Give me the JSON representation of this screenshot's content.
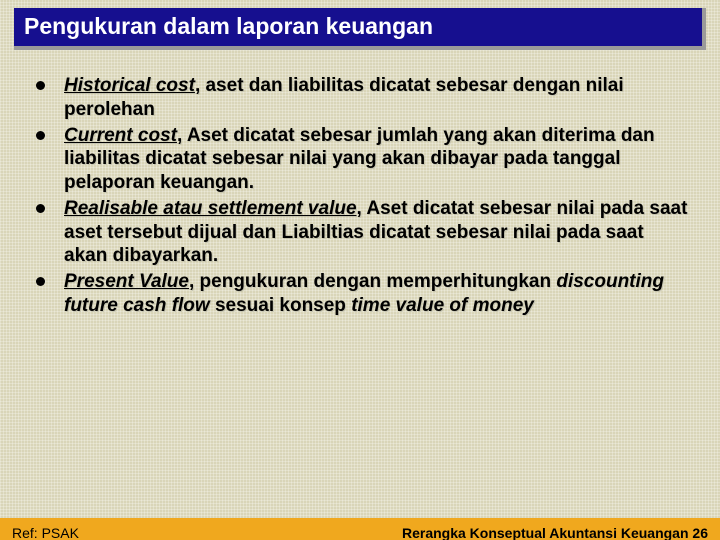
{
  "slide": {
    "title": "Pengukuran dalam laporan keuangan",
    "title_bg": "#160f8f",
    "title_color": "#ffffff",
    "title_fontsize": 23,
    "shadow_color": "#9a9a9a",
    "background_color": "#d9d5b8",
    "body_fontsize": 19,
    "body_color": "#000000",
    "bullets": [
      {
        "term": "Historical cost",
        "rest": ", aset dan liabilitas dicatat sebesar dengan nilai perolehan"
      },
      {
        "term": "Current cost",
        "rest": ", Aset dicatat sebesar jumlah yang akan diterima dan liabilitas dicatat sebesar nilai yang akan dibayar pada tanggal pelaporan keuangan."
      },
      {
        "term": "Realisable atau settlement value",
        "rest": ", Aset dicatat sebesar nilai pada saat aset tersebut dijual dan Liabiltias dicatat sebesar nilai pada saat akan dibayarkan."
      },
      {
        "term": "Present Value",
        "rest_pre": ", pengukuran dengan memperhitungkan ",
        "ital1": "discounting future cash flow",
        "rest_mid": " sesuai konsep ",
        "ital2": "time value of money"
      }
    ]
  },
  "footer": {
    "bg": "#f0a81e",
    "ref": "Ref: PSAK",
    "right_label": "Rerangka Konseptual Akuntansi Keuangan",
    "page_number": "26"
  }
}
